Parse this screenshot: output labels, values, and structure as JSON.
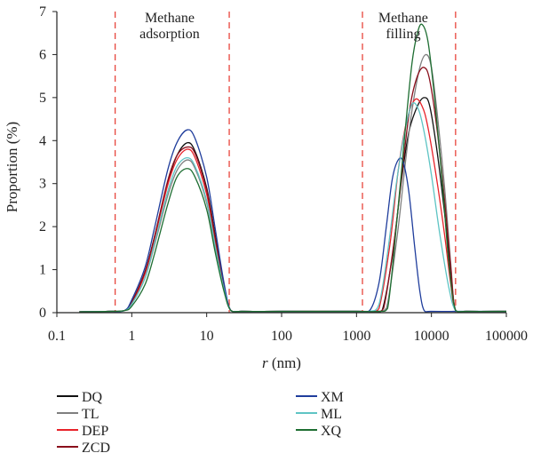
{
  "chart_data": {
    "type": "line",
    "title": "",
    "xlabel_var": "r",
    "xlabel_unit": "(nm)",
    "ylabel": "Proportion (%)",
    "x_scale": "log",
    "xlim": [
      0.1,
      100000
    ],
    "ylim": [
      0,
      7
    ],
    "x_ticks": [
      0.1,
      1,
      10,
      100,
      1000,
      10000,
      100000
    ],
    "x_tick_labels": [
      "0.1",
      "1",
      "10",
      "100",
      "1000",
      "10000",
      "100000"
    ],
    "y_ticks": [
      0,
      1,
      2,
      3,
      4,
      5,
      6,
      7
    ],
    "y_tick_labels": [
      "0",
      "1",
      "2",
      "3",
      "4",
      "5",
      "6",
      "7"
    ],
    "grid": false,
    "legend_position": "below",
    "annotations": [
      {
        "id": "methane-adsorption",
        "lines": [
          "Methane",
          "adsorption"
        ],
        "x": 3.2,
        "y": 6.75
      },
      {
        "id": "methane-filling",
        "lines": [
          "Methane",
          "filling"
        ],
        "x": 4200,
        "y": 6.75
      }
    ],
    "boundaries": [
      0.6,
      20,
      1200,
      21000
    ],
    "series": [
      {
        "name": "DQ",
        "color": "#111111",
        "x": [
          0.2,
          0.5,
          0.8,
          1,
          1.5,
          2,
          3,
          4,
          5.5,
          7,
          10,
          13,
          17,
          21,
          30,
          100,
          1000,
          1800,
          2200,
          3000,
          4000,
          5000,
          6500,
          8000,
          9500,
          12000,
          15000,
          18000,
          21000,
          30000,
          100000
        ],
        "y": [
          0.02,
          0.03,
          0.05,
          0.25,
          0.95,
          1.75,
          3.0,
          3.65,
          3.95,
          3.75,
          2.9,
          1.8,
          0.65,
          0.05,
          0.03,
          0.03,
          0.03,
          0.03,
          0.05,
          1.3,
          3.1,
          4.2,
          4.8,
          5.0,
          4.8,
          3.7,
          2.3,
          1.0,
          0.05,
          0.03,
          0.03
        ]
      },
      {
        "name": "TL",
        "color": "#7f7f7f",
        "x": [
          0.2,
          0.5,
          0.8,
          1,
          1.5,
          2,
          3,
          4,
          5.5,
          7,
          10,
          13,
          17,
          21,
          30,
          100,
          1000,
          1800,
          2500,
          3500,
          4500,
          5500,
          7000,
          8500,
          10000,
          12000,
          15000,
          18000,
          21000,
          30000,
          100000
        ],
        "y": [
          0.02,
          0.03,
          0.05,
          0.2,
          0.8,
          1.55,
          2.7,
          3.3,
          3.55,
          3.35,
          2.55,
          1.5,
          0.55,
          0.05,
          0.03,
          0.03,
          0.03,
          0.03,
          0.1,
          1.8,
          3.5,
          4.7,
          5.7,
          6.0,
          5.7,
          4.6,
          2.9,
          1.2,
          0.05,
          0.03,
          0.03
        ]
      },
      {
        "name": "DEP",
        "color": "#e8232a",
        "x": [
          0.2,
          0.5,
          0.8,
          1,
          1.5,
          2,
          3,
          4,
          5.5,
          7,
          10,
          13,
          17,
          21,
          30,
          100,
          1000,
          1600,
          2000,
          2800,
          3600,
          4600,
          6000,
          7500,
          9000,
          12000,
          15000,
          18000,
          21000,
          30000,
          100000
        ],
        "y": [
          0.02,
          0.03,
          0.05,
          0.22,
          0.9,
          1.7,
          2.95,
          3.55,
          3.8,
          3.6,
          2.75,
          1.65,
          0.6,
          0.05,
          0.03,
          0.03,
          0.03,
          0.03,
          0.1,
          1.6,
          3.3,
          4.4,
          4.95,
          4.8,
          4.3,
          3.0,
          1.8,
          0.7,
          0.05,
          0.03,
          0.03
        ]
      },
      {
        "name": "ZCD",
        "color": "#8a0f1c",
        "x": [
          0.2,
          0.5,
          0.8,
          1,
          1.5,
          2,
          3,
          4,
          5.5,
          7,
          10,
          13,
          17,
          21,
          30,
          100,
          1000,
          1800,
          2300,
          3200,
          4200,
          5200,
          6500,
          8000,
          9500,
          12000,
          15000,
          18000,
          21000,
          30000,
          100000
        ],
        "y": [
          0.02,
          0.03,
          0.05,
          0.25,
          0.95,
          1.75,
          3.05,
          3.65,
          3.85,
          3.7,
          2.85,
          1.75,
          0.62,
          0.05,
          0.03,
          0.03,
          0.03,
          0.03,
          0.1,
          1.7,
          3.5,
          4.8,
          5.5,
          5.7,
          5.4,
          4.2,
          2.6,
          1.1,
          0.05,
          0.03,
          0.03
        ]
      },
      {
        "name": "XM",
        "color": "#1f3d9c",
        "x": [
          0.2,
          0.5,
          0.8,
          1,
          1.5,
          2,
          3,
          4,
          5.5,
          7,
          10,
          13,
          17,
          21,
          30,
          100,
          1000,
          1500,
          2000,
          2500,
          3000,
          3600,
          4200,
          5000,
          6000,
          7000,
          8000,
          10000,
          30000,
          100000
        ],
        "y": [
          0.02,
          0.03,
          0.05,
          0.3,
          1.05,
          1.95,
          3.3,
          3.95,
          4.25,
          4.05,
          3.15,
          1.95,
          0.7,
          0.05,
          0.03,
          0.03,
          0.03,
          0.05,
          0.7,
          2.0,
          3.1,
          3.55,
          3.5,
          2.8,
          1.5,
          0.5,
          0.05,
          0.03,
          0.03,
          0.03
        ]
      },
      {
        "name": "ML",
        "color": "#5ec4c4",
        "x": [
          0.2,
          0.5,
          0.8,
          1,
          1.5,
          2,
          3,
          4,
          5.5,
          7,
          10,
          13,
          17,
          21,
          30,
          100,
          1000,
          1500,
          2000,
          2600,
          3400,
          4400,
          5500,
          6800,
          8200,
          10000,
          13000,
          17000,
          21000,
          30000,
          100000
        ],
        "y": [
          0.02,
          0.03,
          0.05,
          0.2,
          0.8,
          1.6,
          2.8,
          3.4,
          3.6,
          3.4,
          2.6,
          1.55,
          0.55,
          0.05,
          0.03,
          0.03,
          0.03,
          0.03,
          0.2,
          1.4,
          3.0,
          4.2,
          4.85,
          4.7,
          4.1,
          3.2,
          1.8,
          0.6,
          0.05,
          0.03,
          0.03
        ]
      },
      {
        "name": "XQ",
        "color": "#1e6e32",
        "x": [
          0.2,
          0.5,
          0.8,
          1,
          1.5,
          2,
          3,
          4,
          5.5,
          7,
          10,
          13,
          17,
          21,
          30,
          100,
          1000,
          2000,
          2600,
          3400,
          4500,
          5500,
          6500,
          7500,
          9000,
          11000,
          14000,
          17000,
          21000,
          30000,
          100000
        ],
        "y": [
          0.02,
          0.03,
          0.05,
          0.15,
          0.65,
          1.35,
          2.5,
          3.15,
          3.35,
          3.15,
          2.4,
          1.4,
          0.5,
          0.05,
          0.03,
          0.03,
          0.03,
          0.03,
          0.1,
          2.0,
          4.3,
          5.8,
          6.5,
          6.7,
          6.3,
          5.0,
          3.0,
          1.2,
          0.05,
          0.03,
          0.03
        ]
      }
    ]
  }
}
